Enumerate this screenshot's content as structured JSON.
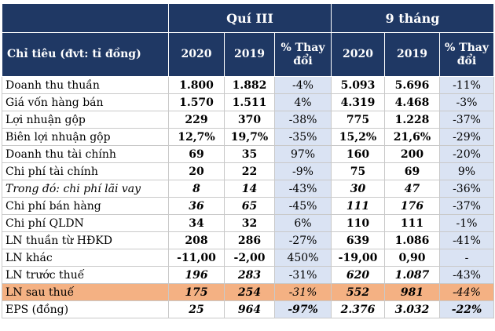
{
  "header": {
    "group_q3": "Quí III",
    "group_9m": "9 tháng",
    "label_col": "Chỉ tiêu (đvt: tỉ đồng)",
    "col_2020": "2020",
    "col_2019": "2019",
    "col_pct": "% Thay đổi"
  },
  "rows": [
    {
      "label": "Doanh thu thuần",
      "q20": "1.800",
      "q19": "1.882",
      "qp": "-4%",
      "n20": "5.093",
      "n19": "5.696",
      "np": "-11%"
    },
    {
      "label": "Giá vốn hàng bán",
      "q20": "1.570",
      "q19": "1.511",
      "qp": "4%",
      "n20": "4.319",
      "n19": "4.468",
      "np": "-3%"
    },
    {
      "label": "Lợi nhuận gộp",
      "q20": "229",
      "q19": "370",
      "qp": "-38%",
      "n20": "775",
      "n19": "1.228",
      "np": "-37%"
    },
    {
      "label": "Biên lợi nhuận gộp",
      "q20": "12,7%",
      "q19": "19,7%",
      "qp": "-35%",
      "n20": "15,2%",
      "n19": "21,6%",
      "np": "-29%"
    },
    {
      "label": "Doanh thu tài chính",
      "q20": "69",
      "q19": "35",
      "qp": "97%",
      "n20": "160",
      "n19": "200",
      "np": "-20%"
    },
    {
      "label": "Chi phí tài chính",
      "q20": "20",
      "q19": "22",
      "qp": "-9%",
      "n20": "75",
      "n19": "69",
      "np": "9%"
    },
    {
      "label": "Trong đó: chi phí lãi vay",
      "q20": "8",
      "q19": "14",
      "qp": "-43%",
      "n20": "30",
      "n19": "47",
      "np": "-36%"
    },
    {
      "label": "Chi phí bán hàng",
      "q20": "36",
      "q19": "65",
      "qp": "-45%",
      "n20": "111",
      "n19": "176",
      "np": "-37%"
    },
    {
      "label": "Chi phí QLDN",
      "q20": "34",
      "q19": "32",
      "qp": "6%",
      "n20": "110",
      "n19": "111",
      "np": "-1%"
    },
    {
      "label": "LN thuần từ HĐKD",
      "q20": "208",
      "q19": "286",
      "qp": "-27%",
      "n20": "639",
      "n19": "1.086",
      "np": "-41%"
    },
    {
      "label": "LN khác",
      "q20": "-11,00",
      "q19": "-2,00",
      "qp": "450%",
      "n20": "-19,00",
      "n19": "0,90",
      "np": "-"
    },
    {
      "label": "LN trước thuế",
      "q20": "196",
      "q19": "283",
      "qp": "-31%",
      "n20": "620",
      "n19": "1.087",
      "np": "-43%"
    },
    {
      "label": "LN sau thuế",
      "q20": "175",
      "q19": "254",
      "qp": "-31%",
      "n20": "552",
      "n19": "981",
      "np": "-44%"
    },
    {
      "label": "EPS (đồng)",
      "q20": "25",
      "q19": "964",
      "qp": "-97%",
      "n20": "2.376",
      "n19": "3.032",
      "np": "-22%"
    }
  ],
  "colors": {
    "header_bg": "#1f3864",
    "pct_bg": "#dae3f3",
    "highlight_bg": "#f4b183"
  }
}
